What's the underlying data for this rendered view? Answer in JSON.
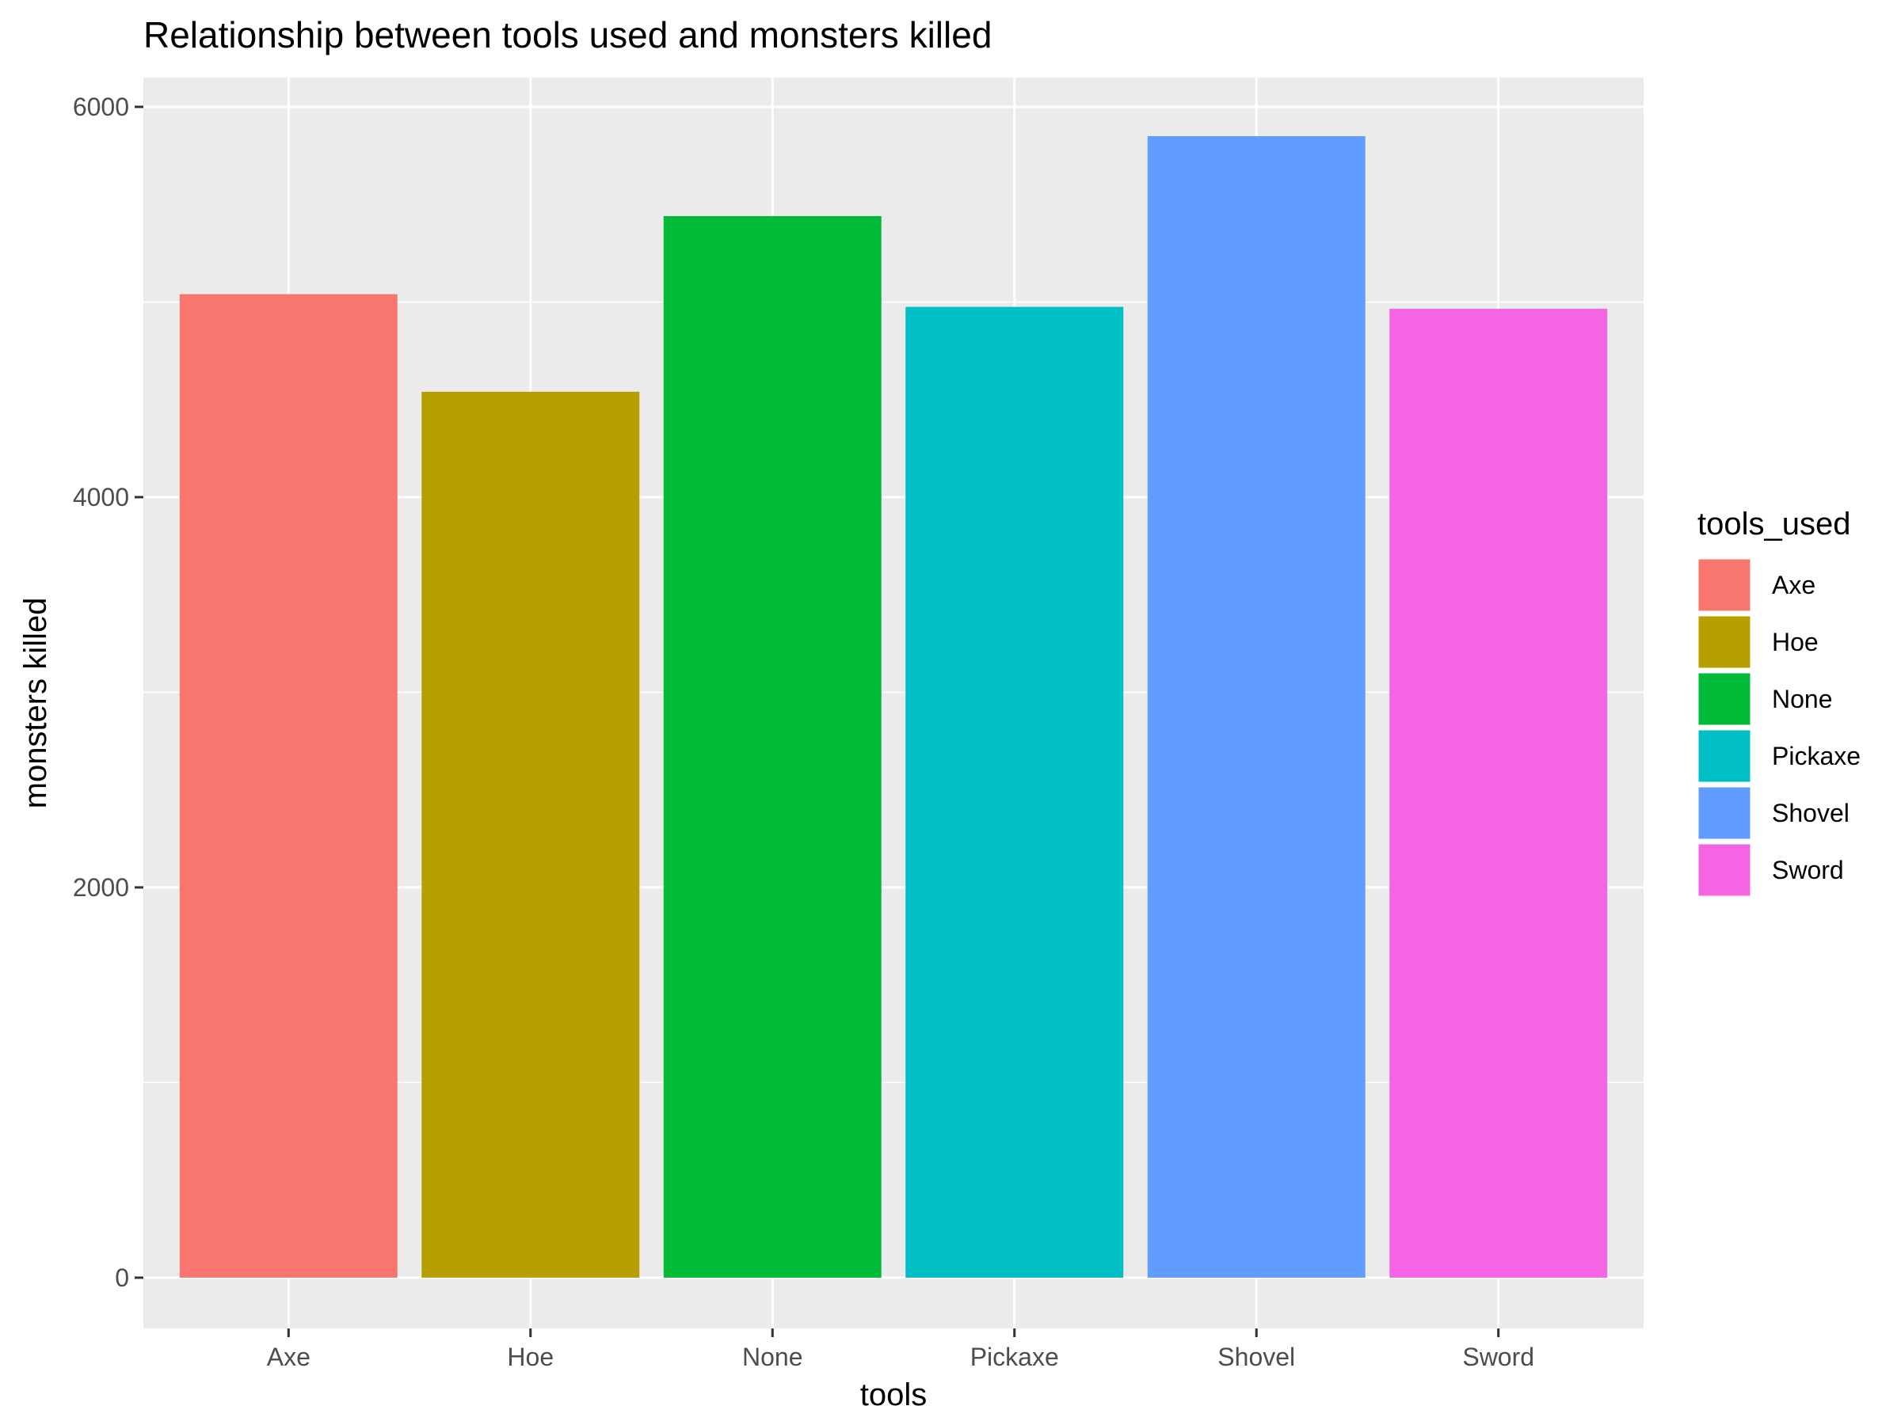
{
  "chart_data": {
    "type": "bar",
    "title": "Relationship between tools used and monsters killed",
    "xlabel": "tools",
    "ylabel": "monsters killed",
    "categories": [
      "Axe",
      "Hoe",
      "None",
      "Pickaxe",
      "Shovel",
      "Sword"
    ],
    "values": [
      5040,
      4540,
      5440,
      4975,
      5850,
      4965
    ],
    "colors": [
      "#F8766D",
      "#B79F00",
      "#00BA38",
      "#00BFC4",
      "#619CFF",
      "#F564E3"
    ],
    "yticks": [
      0,
      2000,
      4000,
      6000
    ],
    "ylim": [
      -260,
      6150
    ],
    "grid": true,
    "legend": {
      "title": "tools_used",
      "placement": "right",
      "items": [
        "Axe",
        "Hoe",
        "None",
        "Pickaxe",
        "Shovel",
        "Sword"
      ]
    }
  }
}
